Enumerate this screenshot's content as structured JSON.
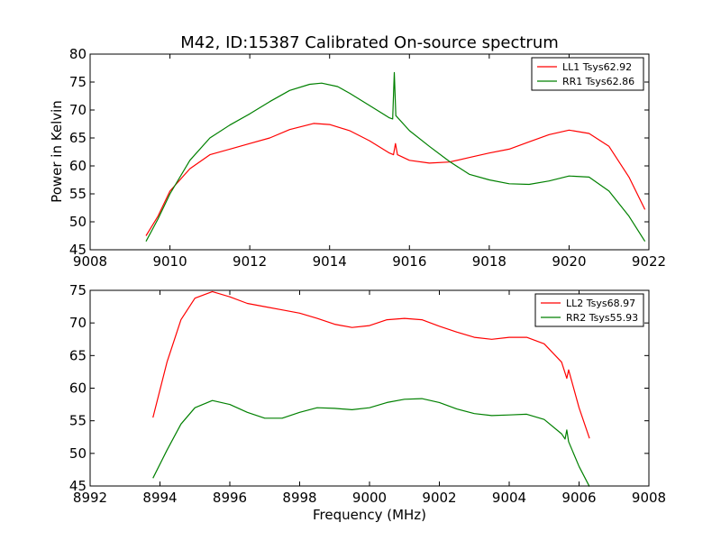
{
  "chart_data": [
    {
      "type": "line",
      "title": "M42, ID:15387 Calibrated On-source spectrum",
      "xlabel": "",
      "ylabel": "Power in Kelvin",
      "xlim": [
        9008,
        9022
      ],
      "ylim": [
        45,
        80
      ],
      "xticks": [
        9008,
        9010,
        9012,
        9014,
        9016,
        9018,
        9020,
        9022
      ],
      "yticks": [
        45,
        50,
        55,
        60,
        65,
        70,
        75,
        80
      ],
      "grid": false,
      "legend": "top-right",
      "series": [
        {
          "name": "LL1 Tsys62.92",
          "color": "#ff0000",
          "points": [
            [
              9009.4,
              47.5
            ],
            [
              9009.7,
              51
            ],
            [
              9010,
              55.5
            ],
            [
              9010.5,
              59.5
            ],
            [
              9011,
              62
            ],
            [
              9011.5,
              63
            ],
            [
              9012,
              64
            ],
            [
              9012.5,
              65
            ],
            [
              9013,
              66.5
            ],
            [
              9013.6,
              67.6
            ],
            [
              9014,
              67.4
            ],
            [
              9014.5,
              66.3
            ],
            [
              9015,
              64.5
            ],
            [
              9015.5,
              62.3
            ],
            [
              9015.6,
              62
            ],
            [
              9015.65,
              64
            ],
            [
              9015.7,
              62
            ],
            [
              9016,
              61
            ],
            [
              9016.5,
              60.5
            ],
            [
              9017,
              60.7
            ],
            [
              9017.5,
              61.5
            ],
            [
              9018,
              62.3
            ],
            [
              9018.5,
              63
            ],
            [
              9019,
              64.3
            ],
            [
              9019.5,
              65.6
            ],
            [
              9020,
              66.4
            ],
            [
              9020.5,
              65.8
            ],
            [
              9021,
              63.5
            ],
            [
              9021.5,
              58
            ],
            [
              9021.9,
              52.2
            ]
          ]
        },
        {
          "name": "RR1 Tsys62.86",
          "color": "#008000",
          "points": [
            [
              9009.4,
              46.5
            ],
            [
              9009.7,
              50.5
            ],
            [
              9010,
              55
            ],
            [
              9010.5,
              61
            ],
            [
              9011,
              65
            ],
            [
              9011.5,
              67.3
            ],
            [
              9012,
              69.3
            ],
            [
              9012.5,
              71.5
            ],
            [
              9013,
              73.5
            ],
            [
              9013.5,
              74.6
            ],
            [
              9013.8,
              74.8
            ],
            [
              9014.2,
              74.2
            ],
            [
              9014.5,
              73
            ],
            [
              9015,
              70.8
            ],
            [
              9015.5,
              68.6
            ],
            [
              9015.58,
              68.4
            ],
            [
              9015.62,
              76.7
            ],
            [
              9015.66,
              69
            ],
            [
              9016,
              66.3
            ],
            [
              9016.5,
              63.5
            ],
            [
              9017,
              60.8
            ],
            [
              9017.5,
              58.5
            ],
            [
              9018,
              57.5
            ],
            [
              9018.5,
              56.8
            ],
            [
              9019,
              56.7
            ],
            [
              9019.5,
              57.3
            ],
            [
              9020,
              58.2
            ],
            [
              9020.5,
              58
            ],
            [
              9021,
              55.5
            ],
            [
              9021.5,
              51
            ],
            [
              9021.9,
              46.5
            ]
          ]
        }
      ]
    },
    {
      "type": "line",
      "title": "",
      "xlabel": "Frequency (MHz)",
      "ylabel": "",
      "xlim": [
        8992,
        9008
      ],
      "ylim": [
        45,
        75
      ],
      "xticks": [
        8992,
        8994,
        8996,
        8998,
        9000,
        9002,
        9004,
        9006,
        9008
      ],
      "yticks": [
        45,
        50,
        55,
        60,
        65,
        70,
        75
      ],
      "grid": false,
      "legend": "top-right",
      "series": [
        {
          "name": "LL2 Tsys68.97",
          "color": "#ff0000",
          "points": [
            [
              8993.8,
              55.5
            ],
            [
              8994.2,
              64
            ],
            [
              8994.6,
              70.5
            ],
            [
              8995,
              73.8
            ],
            [
              8995.5,
              74.8
            ],
            [
              8996,
              74
            ],
            [
              8996.5,
              73
            ],
            [
              8997,
              72.5
            ],
            [
              8997.5,
              72
            ],
            [
              8998,
              71.5
            ],
            [
              8998.5,
              70.7
            ],
            [
              8999,
              69.8
            ],
            [
              8999.5,
              69.3
            ],
            [
              9000,
              69.6
            ],
            [
              9000.5,
              70.5
            ],
            [
              9001,
              70.7
            ],
            [
              9001.5,
              70.5
            ],
            [
              9002,
              69.5
            ],
            [
              9002.5,
              68.6
            ],
            [
              9003,
              67.8
            ],
            [
              9003.5,
              67.5
            ],
            [
              9004,
              67.8
            ],
            [
              9004.5,
              67.8
            ],
            [
              9005,
              66.8
            ],
            [
              9005.5,
              64
            ],
            [
              9005.65,
              61.5
            ],
            [
              9005.7,
              62.8
            ],
            [
              9006,
              57
            ],
            [
              9006.3,
              52.3
            ]
          ]
        },
        {
          "name": "RR2 Tsys55.93",
          "color": "#008000",
          "points": [
            [
              8993.8,
              46.2
            ],
            [
              8994.2,
              50.5
            ],
            [
              8994.6,
              54.5
            ],
            [
              8995,
              57
            ],
            [
              8995.5,
              58.1
            ],
            [
              8996,
              57.5
            ],
            [
              8996.5,
              56.3
            ],
            [
              8997,
              55.4
            ],
            [
              8997.5,
              55.4
            ],
            [
              8998,
              56.3
            ],
            [
              8998.5,
              57
            ],
            [
              8999,
              56.9
            ],
            [
              8999.5,
              56.7
            ],
            [
              9000,
              57
            ],
            [
              9000.5,
              57.8
            ],
            [
              9001,
              58.3
            ],
            [
              9001.5,
              58.4
            ],
            [
              9002,
              57.8
            ],
            [
              9002.5,
              56.8
            ],
            [
              9003,
              56.1
            ],
            [
              9003.5,
              55.8
            ],
            [
              9004,
              55.9
            ],
            [
              9004.5,
              56
            ],
            [
              9005,
              55.2
            ],
            [
              9005.5,
              53
            ],
            [
              9005.6,
              52.2
            ],
            [
              9005.65,
              53.6
            ],
            [
              9005.7,
              51.8
            ],
            [
              9006,
              48
            ],
            [
              9006.3,
              44.9
            ]
          ]
        }
      ]
    }
  ]
}
